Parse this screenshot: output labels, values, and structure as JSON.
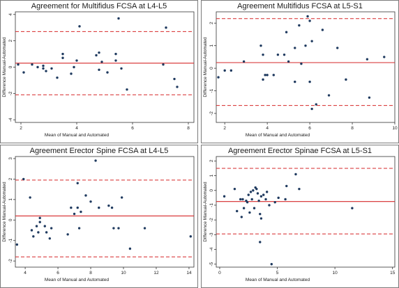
{
  "chart_data": [
    {
      "type": "scatter",
      "title": "Agreement for Multifidus FCSA at L4-L5",
      "xlabel": "Mean of Manual and Automated",
      "ylabel": "Difference Manual-Automated",
      "xlim": [
        1.8,
        8.2
      ],
      "ylim": [
        -4.2,
        4.2
      ],
      "xticks": [
        2,
        4,
        6,
        8
      ],
      "yticks": [
        -4,
        -2,
        0,
        2,
        4
      ],
      "mean_line": 0.3,
      "upper_limit": 2.7,
      "lower_limit": -2.1,
      "colors": {
        "points": "#1f3a5f",
        "mean": "#d62728",
        "limits": "#d62728"
      },
      "points": [
        {
          "x": 1.9,
          "y": 0.2
        },
        {
          "x": 2.1,
          "y": -0.4
        },
        {
          "x": 2.4,
          "y": 0.2
        },
        {
          "x": 2.6,
          "y": 0.0
        },
        {
          "x": 2.8,
          "y": 0.1
        },
        {
          "x": 2.9,
          "y": -0.3
        },
        {
          "x": 2.8,
          "y": -0.1
        },
        {
          "x": 3.1,
          "y": -0.1
        },
        {
          "x": 3.3,
          "y": -0.8
        },
        {
          "x": 3.5,
          "y": 1.0
        },
        {
          "x": 3.5,
          "y": 0.7
        },
        {
          "x": 3.8,
          "y": -0.5
        },
        {
          "x": 3.9,
          "y": 0.0
        },
        {
          "x": 4.0,
          "y": 0.5
        },
        {
          "x": 4.1,
          "y": 3.1
        },
        {
          "x": 4.7,
          "y": 0.9
        },
        {
          "x": 4.8,
          "y": 1.1
        },
        {
          "x": 4.8,
          "y": -0.2
        },
        {
          "x": 4.9,
          "y": 0.4
        },
        {
          "x": 5.1,
          "y": -0.4
        },
        {
          "x": 5.4,
          "y": 0.5
        },
        {
          "x": 5.4,
          "y": 1.0
        },
        {
          "x": 5.5,
          "y": 3.7
        },
        {
          "x": 5.6,
          "y": -0.1
        },
        {
          "x": 5.8,
          "y": -1.7
        },
        {
          "x": 7.1,
          "y": 0.2
        },
        {
          "x": 7.2,
          "y": 3.0
        },
        {
          "x": 7.5,
          "y": -0.9
        },
        {
          "x": 7.6,
          "y": -1.5
        }
      ]
    },
    {
      "type": "scatter",
      "title": "Agreement Multifidus FCSA at L5-S1",
      "xlabel": "Mean of Manual and Automated",
      "ylabel": "Difference Manual-Automated",
      "xlim": [
        1.6,
        10.0
      ],
      "ylim": [
        -2.4,
        2.5
      ],
      "xticks": [
        2,
        4,
        6,
        8,
        10
      ],
      "yticks": [
        -2,
        -1,
        0,
        1,
        2
      ],
      "mean_line": 0.25,
      "upper_limit": 2.2,
      "lower_limit": -1.65,
      "colors": {
        "points": "#1f3a5f",
        "mean": "#d62728",
        "limits": "#d62728"
      },
      "points": [
        {
          "x": 1.7,
          "y": -0.4
        },
        {
          "x": 2.0,
          "y": -0.1
        },
        {
          "x": 2.3,
          "y": -0.1
        },
        {
          "x": 2.9,
          "y": 0.3
        },
        {
          "x": 3.7,
          "y": 1.0
        },
        {
          "x": 3.8,
          "y": 0.6
        },
        {
          "x": 3.8,
          "y": -0.5
        },
        {
          "x": 3.9,
          "y": -0.3
        },
        {
          "x": 4.0,
          "y": -0.3
        },
        {
          "x": 4.3,
          "y": -0.3
        },
        {
          "x": 4.5,
          "y": 0.6
        },
        {
          "x": 4.8,
          "y": 0.6
        },
        {
          "x": 4.9,
          "y": 1.6
        },
        {
          "x": 5.0,
          "y": 0.3
        },
        {
          "x": 5.3,
          "y": 0.9
        },
        {
          "x": 5.3,
          "y": -0.6
        },
        {
          "x": 5.5,
          "y": 1.9
        },
        {
          "x": 5.6,
          "y": 0.2
        },
        {
          "x": 5.8,
          "y": 1.0
        },
        {
          "x": 5.9,
          "y": 2.3
        },
        {
          "x": 6.0,
          "y": 2.1
        },
        {
          "x": 6.1,
          "y": 1.2
        },
        {
          "x": 6.0,
          "y": -0.6
        },
        {
          "x": 6.1,
          "y": -1.8
        },
        {
          "x": 6.3,
          "y": -1.6
        },
        {
          "x": 6.6,
          "y": 1.7
        },
        {
          "x": 6.9,
          "y": -1.2
        },
        {
          "x": 7.3,
          "y": 0.9
        },
        {
          "x": 7.7,
          "y": -0.5
        },
        {
          "x": 8.7,
          "y": 0.4
        },
        {
          "x": 8.8,
          "y": -1.3
        },
        {
          "x": 9.5,
          "y": 0.5
        }
      ]
    },
    {
      "type": "scatter",
      "title": "Agreement Erector Spine FCSA at L4-L5",
      "xlabel": "Mean of Manual and Automated",
      "ylabel": "Difference Manual-Automated",
      "xlim": [
        3.4,
        14.3
      ],
      "ylim": [
        -2.3,
        3.1
      ],
      "xticks": [
        4,
        6,
        8,
        10,
        12,
        14
      ],
      "yticks": [
        -2,
        -1,
        0,
        1,
        2,
        3
      ],
      "mean_line": 0.2,
      "upper_limit": 1.95,
      "lower_limit": -1.8,
      "colors": {
        "points": "#1f3a5f",
        "mean": "#d62728",
        "limits": "#d62728"
      },
      "points": [
        {
          "x": 3.5,
          "y": -1.2
        },
        {
          "x": 3.9,
          "y": 2.0
        },
        {
          "x": 4.3,
          "y": 1.1
        },
        {
          "x": 4.4,
          "y": -0.5
        },
        {
          "x": 4.5,
          "y": -0.8
        },
        {
          "x": 4.7,
          "y": -0.3
        },
        {
          "x": 4.8,
          "y": -0.6
        },
        {
          "x": 4.9,
          "y": -0.1
        },
        {
          "x": 4.9,
          "y": 0.1
        },
        {
          "x": 5.2,
          "y": -0.3
        },
        {
          "x": 5.3,
          "y": -0.6
        },
        {
          "x": 5.5,
          "y": -0.9
        },
        {
          "x": 5.6,
          "y": -0.4
        },
        {
          "x": 6.6,
          "y": -0.7
        },
        {
          "x": 6.8,
          "y": 0.6
        },
        {
          "x": 7.0,
          "y": 0.3
        },
        {
          "x": 7.2,
          "y": 1.8
        },
        {
          "x": 7.2,
          "y": 0.6
        },
        {
          "x": 7.3,
          "y": -0.4
        },
        {
          "x": 7.4,
          "y": 0.4
        },
        {
          "x": 7.7,
          "y": 1.2
        },
        {
          "x": 8.0,
          "y": 0.9
        },
        {
          "x": 8.3,
          "y": 2.9
        },
        {
          "x": 8.5,
          "y": 0.6
        },
        {
          "x": 9.1,
          "y": 0.7
        },
        {
          "x": 9.3,
          "y": 0.6
        },
        {
          "x": 9.4,
          "y": -0.4
        },
        {
          "x": 9.7,
          "y": -0.4
        },
        {
          "x": 9.9,
          "y": 1.1
        },
        {
          "x": 10.4,
          "y": -1.4
        },
        {
          "x": 11.3,
          "y": -0.4
        },
        {
          "x": 14.1,
          "y": -0.8
        }
      ]
    },
    {
      "type": "scatter",
      "title": "Agreement Erector Spinae FCSA at L5-S1",
      "xlabel": "Mean of Manual and Automated",
      "ylabel": "Difference Manual-Automated",
      "xlim": [
        -0.3,
        15.2
      ],
      "ylim": [
        -5.2,
        2.3
      ],
      "xticks": [
        0,
        5,
        10,
        15
      ],
      "yticks": [
        -5,
        -4,
        -3,
        -2,
        -1,
        0,
        1,
        2
      ],
      "mean_line": -0.75,
      "upper_limit": 1.5,
      "lower_limit": -2.95,
      "colors": {
        "points": "#1f3a5f",
        "mean": "#d62728",
        "limits": "#d62728"
      },
      "points": [
        {
          "x": 0.4,
          "y": -0.4
        },
        {
          "x": 1.3,
          "y": 0.1
        },
        {
          "x": 1.5,
          "y": -1.4
        },
        {
          "x": 1.8,
          "y": -0.6
        },
        {
          "x": 1.9,
          "y": -1.8
        },
        {
          "x": 2.0,
          "y": -0.6
        },
        {
          "x": 2.1,
          "y": -1.2
        },
        {
          "x": 2.3,
          "y": -0.7
        },
        {
          "x": 2.4,
          "y": -0.8
        },
        {
          "x": 2.5,
          "y": -0.3
        },
        {
          "x": 2.6,
          "y": -1.5
        },
        {
          "x": 2.7,
          "y": -0.1
        },
        {
          "x": 2.8,
          "y": -0.6
        },
        {
          "x": 2.9,
          "y": 0.0
        },
        {
          "x": 3.0,
          "y": -1.2
        },
        {
          "x": 3.1,
          "y": 0.2
        },
        {
          "x": 3.2,
          "y": 0.1
        },
        {
          "x": 3.3,
          "y": -0.2
        },
        {
          "x": 3.4,
          "y": -0.7
        },
        {
          "x": 3.5,
          "y": -1.6
        },
        {
          "x": 3.6,
          "y": -0.4
        },
        {
          "x": 3.6,
          "y": -1.9
        },
        {
          "x": 3.8,
          "y": -0.3
        },
        {
          "x": 4.0,
          "y": -0.6
        },
        {
          "x": 4.1,
          "y": -0.1
        },
        {
          "x": 4.3,
          "y": -1.0
        },
        {
          "x": 4.5,
          "y": -5.0
        },
        {
          "x": 4.8,
          "y": -0.8
        },
        {
          "x": 5.1,
          "y": -0.5
        },
        {
          "x": 5.7,
          "y": -0.6
        },
        {
          "x": 5.8,
          "y": 0.3
        },
        {
          "x": 6.6,
          "y": 1.1
        },
        {
          "x": 6.9,
          "y": 0.1
        },
        {
          "x": 3.5,
          "y": -3.5
        },
        {
          "x": 11.5,
          "y": -1.2
        }
      ]
    }
  ]
}
